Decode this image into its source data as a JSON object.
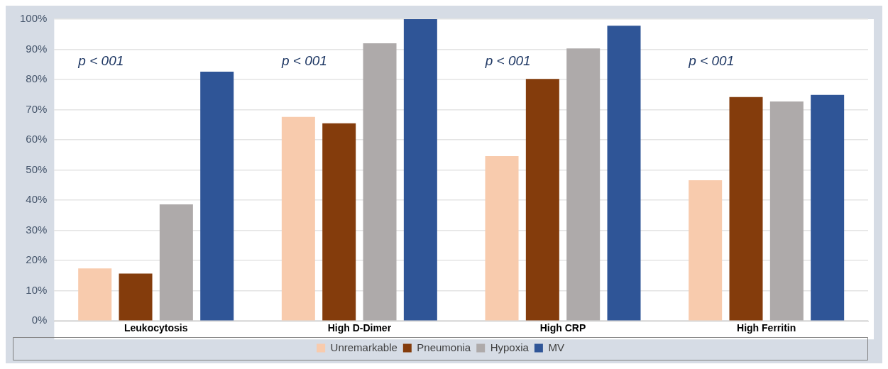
{
  "chart_data": {
    "type": "bar",
    "categories": [
      "Leukocytosis",
      "High D-Dimer",
      "High CRP",
      "High Ferritin"
    ],
    "series": [
      {
        "name": "Unremarkable",
        "color": "#f8cbad",
        "values": [
          17.4,
          67.6,
          54.6,
          46.6
        ]
      },
      {
        "name": "Pneumonia",
        "color": "#843c0c",
        "values": [
          15.7,
          65.5,
          80.2,
          74.2
        ]
      },
      {
        "name": "Hypoxia",
        "color": "#aeaaaa",
        "values": [
          38.6,
          92.0,
          90.3,
          72.7
        ]
      },
      {
        "name": "MV",
        "color": "#2f5597",
        "values": [
          82.6,
          100,
          97.8,
          74.9
        ]
      }
    ],
    "ylim": [
      0,
      100
    ],
    "yticks": [
      {
        "value": 0,
        "label": "0%"
      },
      {
        "value": 10,
        "label": "10%"
      },
      {
        "value": 20,
        "label": "20%"
      },
      {
        "value": 30,
        "label": "30%"
      },
      {
        "value": 40,
        "label": "40%"
      },
      {
        "value": 50,
        "label": "50%"
      },
      {
        "value": 60,
        "label": "60%"
      },
      {
        "value": 70,
        "label": "70%"
      },
      {
        "value": 80,
        "label": "80%"
      },
      {
        "value": 90,
        "label": "90%"
      },
      {
        "value": 100,
        "label": "100%"
      }
    ],
    "annotations": [
      "p < 001",
      "p < 001",
      "p < 001",
      "p < 001"
    ],
    "grid": "y",
    "legend": "bottom"
  }
}
